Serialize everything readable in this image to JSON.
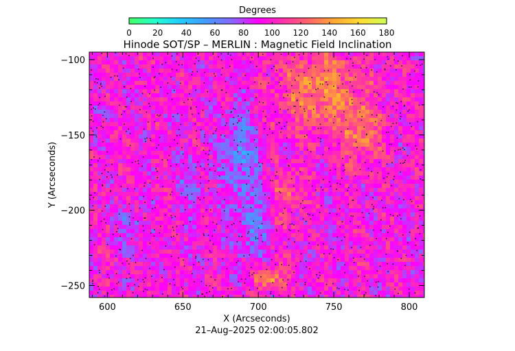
{
  "chart_data": {
    "type": "heatmap",
    "title": "Hinode SOT/SP – MERLIN : Magnetic Field Inclination",
    "xlabel": "X (Arcseconds)",
    "ylabel": "Y (Arcseconds)",
    "timestamp": "21–Aug–2025 02:00:05.802",
    "xlim": [
      588,
      810
    ],
    "ylim": [
      -258,
      -95
    ],
    "x_ticks": [
      600,
      650,
      700,
      750,
      800
    ],
    "y_ticks": [
      -100,
      -150,
      -200,
      -250
    ],
    "x_tick_labels": [
      "600",
      "650",
      "700",
      "750",
      "800"
    ],
    "y_tick_labels": [
      "−100",
      "−150",
      "−200",
      "−250"
    ],
    "colorbar": {
      "label": "Degrees",
      "range": [
        0,
        180
      ],
      "ticks": [
        0,
        20,
        40,
        60,
        80,
        100,
        120,
        140,
        160,
        180
      ],
      "tick_labels": [
        "0",
        "20",
        "40",
        "60",
        "80",
        "100",
        "120",
        "140",
        "160",
        "180"
      ],
      "colors": [
        "#44ff66",
        "#22ffcc",
        "#22ccff",
        "#4499ff",
        "#8866ff",
        "#ff00ff",
        "#ff33aa",
        "#ff6666",
        "#ffaa33",
        "#ffdd33",
        "#ccff55"
      ]
    },
    "features": [
      {
        "region": "dominant background",
        "inclination_deg": 95
      },
      {
        "region": "blue lane near x=690, y=-150 to -225",
        "inclination_deg": 62
      },
      {
        "region": "blue patch near x=615, y=-210",
        "inclination_deg": 65
      },
      {
        "region": "orange/yellow area near x=740, y=-110 to -150",
        "inclination_deg": 135
      },
      {
        "region": "orange/yellow patch near x=705, y=-245",
        "inclination_deg": 138
      }
    ]
  }
}
